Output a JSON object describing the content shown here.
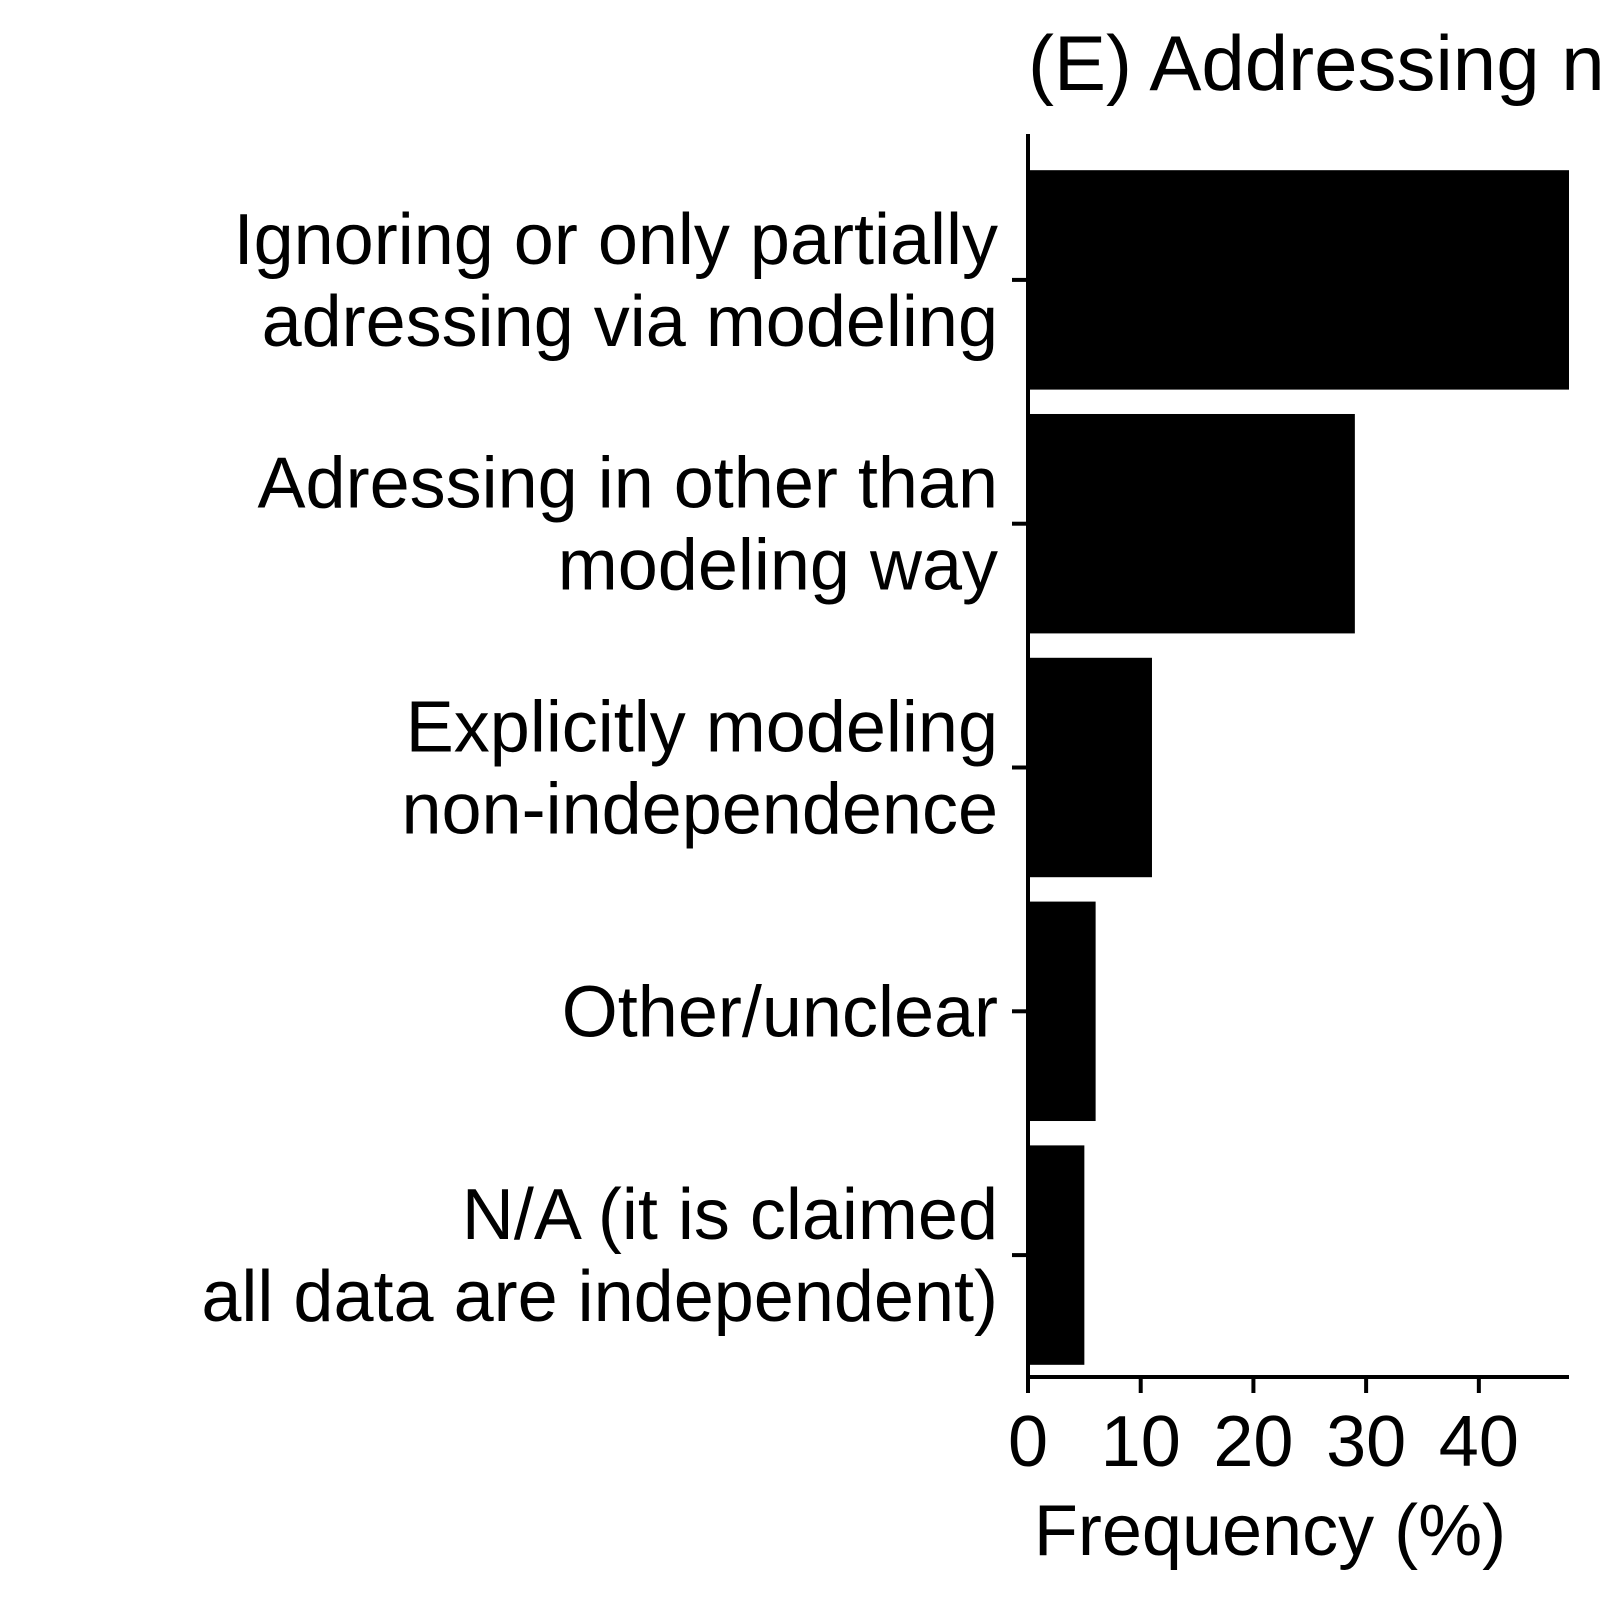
{
  "chart_data": {
    "type": "bar",
    "orientation": "horizontal",
    "title": "(E) Addressing n",
    "categories": [
      [
        "Ignoring or only partially",
        "adressing via modeling"
      ],
      [
        "Adressing in other than",
        "modeling way"
      ],
      [
        "Explicitly modeling",
        "non-independence"
      ],
      [
        "Other/unclear"
      ],
      [
        "N/A (it is claimed",
        "all data are independent)"
      ]
    ],
    "values": [
      48,
      29,
      11,
      6,
      5
    ],
    "xlabel": "Frequency (%)",
    "ylabel": "",
    "xlim": [
      0,
      48
    ],
    "xticks": [
      0,
      10,
      20,
      30,
      40
    ],
    "grid": false,
    "bar_color": "#000000"
  }
}
